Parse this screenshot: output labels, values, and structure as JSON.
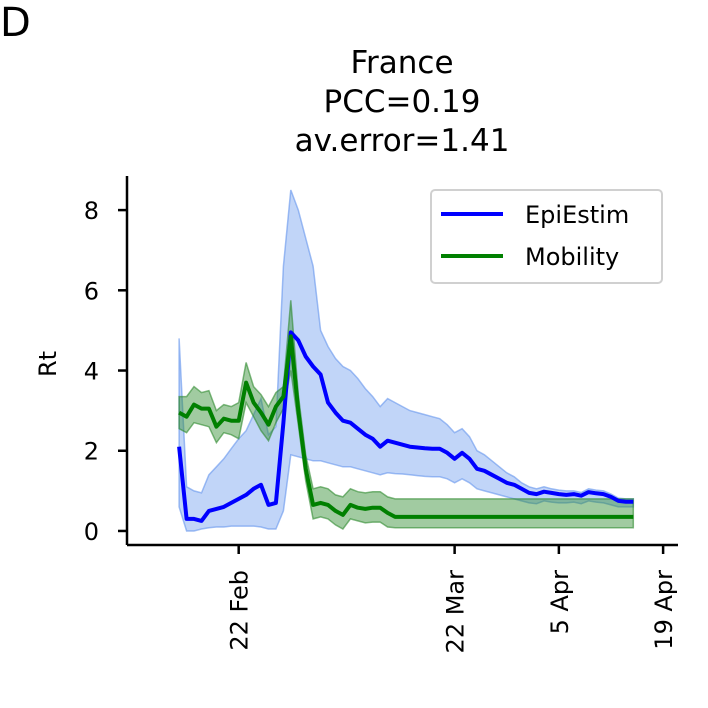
{
  "panel_label": "D",
  "chart_data": {
    "type": "line",
    "title": [
      "France",
      "PCC=0.19",
      "av.error=1.41"
    ],
    "ylabel": "Rt",
    "xlabel": "",
    "x_start": "2020-02-14",
    "x_end": "2020-04-19",
    "xlim": [
      "2020-02-07",
      "2020-04-21"
    ],
    "ylim": [
      -0.35,
      8.85
    ],
    "yticks": [
      0,
      2,
      4,
      6,
      8
    ],
    "xticks": [
      {
        "date": "2020-02-22",
        "label": "22 Feb"
      },
      {
        "date": "2020-03-22",
        "label": "22 Mar"
      },
      {
        "date": "2020-04-05",
        "label": "5 Apr"
      },
      {
        "date": "2020-04-19",
        "label": "19 Apr"
      }
    ],
    "legend_position": "top-right",
    "series": [
      {
        "name": "EpiEstim",
        "color": "#0000ff",
        "band_color": "#6495ed",
        "values": [
          2.1,
          0.3,
          0.3,
          0.25,
          0.5,
          0.55,
          0.6,
          0.7,
          0.8,
          0.9,
          1.05,
          1.15,
          0.65,
          0.7,
          2.7,
          4.95,
          4.75,
          4.35,
          4.1,
          3.9,
          3.2,
          2.95,
          2.75,
          2.7,
          2.55,
          2.4,
          2.3,
          2.1,
          2.25,
          2.2,
          2.15,
          2.1,
          2.08,
          2.06,
          2.05,
          2.05,
          1.95,
          1.8,
          1.95,
          1.8,
          1.55,
          1.5,
          1.4,
          1.3,
          1.2,
          1.15,
          1.05,
          0.95,
          0.92,
          0.98,
          0.95,
          0.92,
          0.9,
          0.92,
          0.88,
          0.97,
          0.94,
          0.92,
          0.85,
          0.75,
          0.73,
          0.73
        ],
        "upper": [
          4.8,
          1.1,
          1.0,
          0.95,
          1.4,
          1.6,
          1.8,
          2.05,
          2.3,
          2.5,
          2.9,
          3.3,
          2.4,
          2.6,
          6.6,
          8.5,
          8.0,
          7.3,
          6.6,
          5.0,
          4.6,
          4.3,
          4.1,
          4.0,
          3.8,
          3.55,
          3.35,
          3.1,
          3.3,
          3.2,
          3.1,
          3.0,
          2.95,
          2.9,
          2.85,
          2.8,
          2.65,
          2.45,
          2.55,
          2.35,
          2.0,
          1.9,
          1.75,
          1.6,
          1.45,
          1.35,
          1.2,
          1.1,
          1.05,
          1.1,
          1.05,
          1.02,
          1.0,
          1.0,
          0.96,
          1.05,
          1.02,
          1.0,
          0.92,
          0.82,
          0.8,
          0.8
        ],
        "lower": [
          0.6,
          0.0,
          0.0,
          0.05,
          0.08,
          0.1,
          0.1,
          0.12,
          0.12,
          0.12,
          0.12,
          0.1,
          0.05,
          0.05,
          0.5,
          1.9,
          1.85,
          1.8,
          1.75,
          1.75,
          1.7,
          1.65,
          1.6,
          1.6,
          1.55,
          1.5,
          1.45,
          1.4,
          1.45,
          1.43,
          1.42,
          1.4,
          1.38,
          1.36,
          1.35,
          1.35,
          1.3,
          1.2,
          1.3,
          1.2,
          1.05,
          1.0,
          0.95,
          0.9,
          0.85,
          0.8,
          0.75,
          0.7,
          0.68,
          0.75,
          0.72,
          0.7,
          0.7,
          0.72,
          0.68,
          0.75,
          0.72,
          0.7,
          0.65,
          0.6,
          0.6,
          0.6
        ]
      },
      {
        "name": "Mobility",
        "color": "#008000",
        "band_color": "#2e8b2e",
        "values": [
          2.95,
          2.85,
          3.15,
          3.05,
          3.05,
          2.6,
          2.8,
          2.75,
          2.75,
          3.7,
          3.2,
          2.95,
          2.65,
          3.1,
          3.35,
          4.85,
          3.0,
          1.55,
          0.65,
          0.7,
          0.65,
          0.5,
          0.4,
          0.65,
          0.58,
          0.55,
          0.58,
          0.58,
          0.45,
          0.35,
          0.35,
          0.35,
          0.35,
          0.35,
          0.35,
          0.35,
          0.35,
          0.35,
          0.35,
          0.35,
          0.35,
          0.35,
          0.35,
          0.35,
          0.35,
          0.35,
          0.35,
          0.35,
          0.35,
          0.35,
          0.35,
          0.35,
          0.35,
          0.35,
          0.35,
          0.35,
          0.35,
          0.35,
          0.35,
          0.35,
          0.35,
          0.35
        ],
        "upper": [
          3.35,
          3.35,
          3.6,
          3.45,
          3.5,
          3.0,
          3.15,
          3.1,
          3.2,
          4.2,
          3.6,
          3.4,
          3.1,
          3.45,
          3.6,
          5.75,
          3.4,
          1.9,
          1.05,
          1.1,
          1.05,
          0.9,
          0.85,
          1.05,
          0.98,
          0.95,
          0.98,
          0.98,
          0.85,
          0.8,
          0.8,
          0.8,
          0.8,
          0.8,
          0.8,
          0.8,
          0.8,
          0.8,
          0.8,
          0.8,
          0.8,
          0.8,
          0.8,
          0.8,
          0.8,
          0.8,
          0.8,
          0.8,
          0.8,
          0.8,
          0.8,
          0.8,
          0.8,
          0.8,
          0.8,
          0.8,
          0.8,
          0.8,
          0.8,
          0.8,
          0.8,
          0.8
        ],
        "lower": [
          2.55,
          2.45,
          2.7,
          2.65,
          2.6,
          2.2,
          2.45,
          2.4,
          2.3,
          3.2,
          2.85,
          2.5,
          2.25,
          2.7,
          3.05,
          4.0,
          2.65,
          1.25,
          0.3,
          0.35,
          0.3,
          0.15,
          0.05,
          0.3,
          0.25,
          0.2,
          0.22,
          0.22,
          0.1,
          0.08,
          0.08,
          0.08,
          0.08,
          0.08,
          0.08,
          0.08,
          0.08,
          0.08,
          0.08,
          0.08,
          0.08,
          0.08,
          0.08,
          0.08,
          0.08,
          0.08,
          0.08,
          0.08,
          0.08,
          0.08,
          0.08,
          0.08,
          0.08,
          0.08,
          0.08,
          0.08,
          0.08,
          0.08,
          0.08,
          0.08,
          0.08,
          0.08
        ]
      }
    ]
  }
}
